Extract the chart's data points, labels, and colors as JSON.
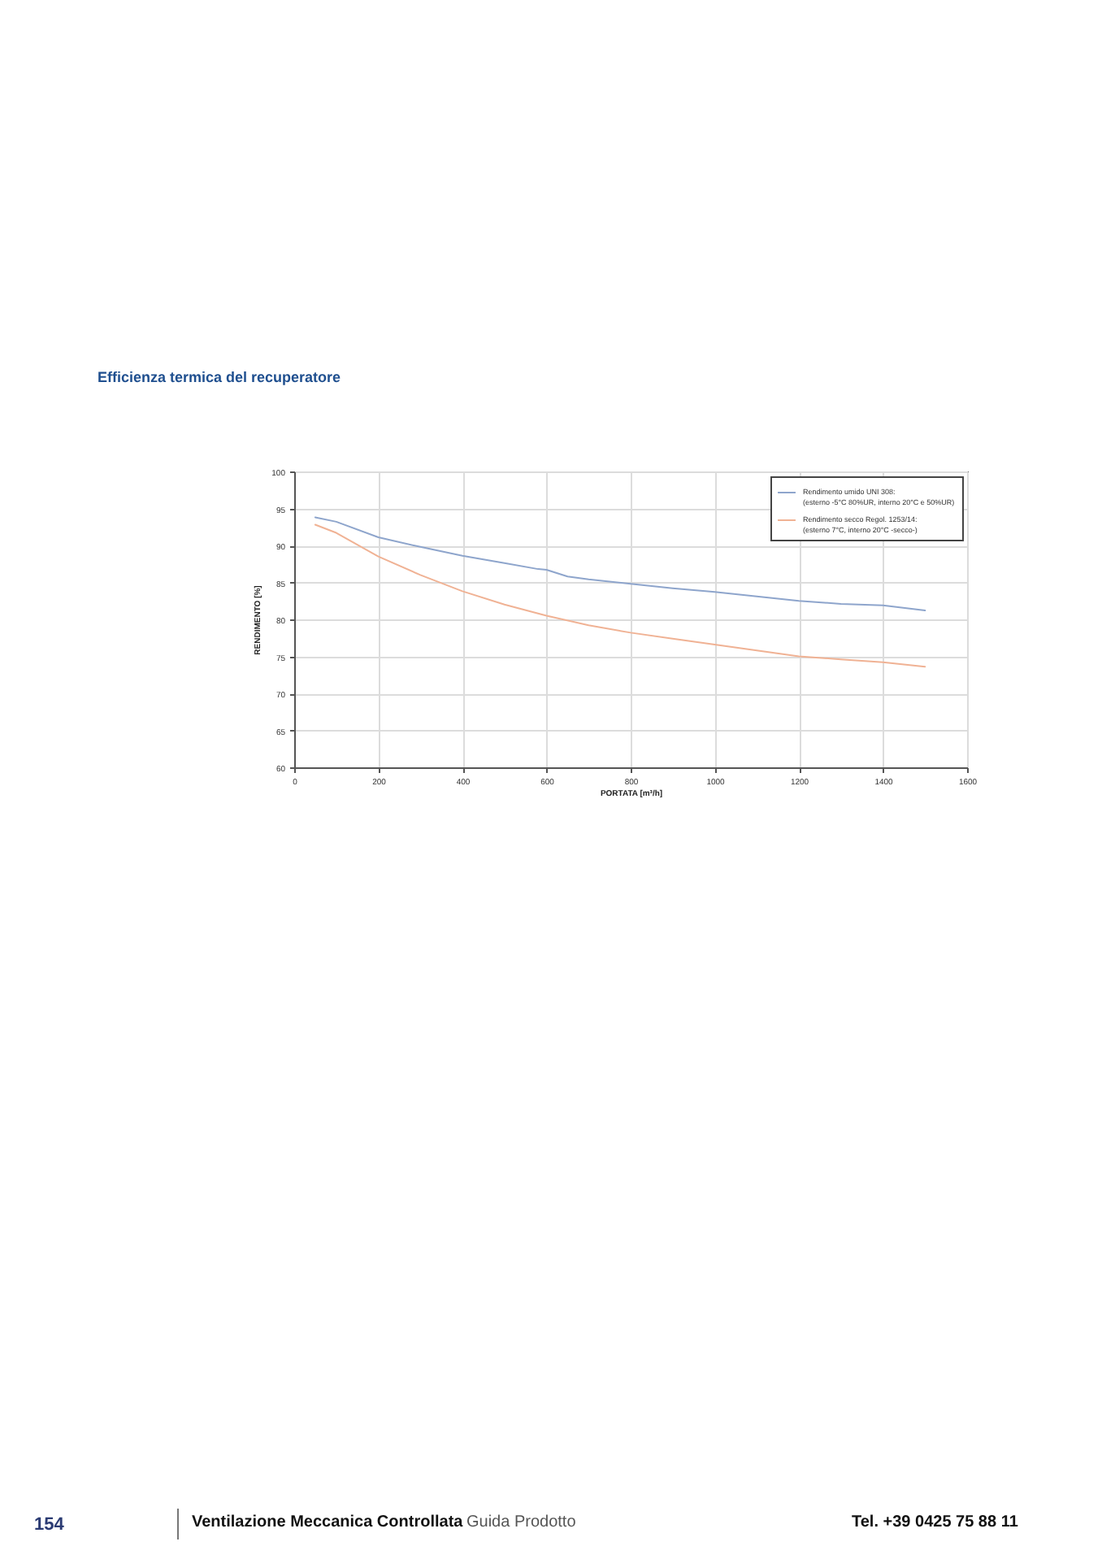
{
  "chart_data": {
    "type": "line",
    "title": "Efficienza termica del recuperatore",
    "xlabel": "PORTATA [m³/h]",
    "ylabel": "RENDIMENTO [%]",
    "xlim": [
      0,
      1600
    ],
    "xticks": [
      0,
      200,
      400,
      600,
      800,
      1000,
      1200,
      1400,
      1600
    ],
    "ylim": [
      60,
      100
    ],
    "yticks": [
      60,
      65,
      70,
      75,
      80,
      85,
      90,
      95,
      100
    ],
    "grid": true,
    "legend": "top right",
    "line_style": "solid",
    "series": [
      {
        "name": "Rendimento umido UNI 308: (esterno -5°C 80%UR, interno 20°C e 50%UR)",
        "color": "#8ea5cc",
        "x": [
          50,
          100,
          200,
          300,
          400,
          500,
          580,
          600,
          650,
          700,
          800,
          900,
          1000,
          1100,
          1200,
          1300,
          1400,
          1500
        ],
        "values": [
          93.8,
          93.2,
          91.1,
          89.8,
          88.6,
          87.6,
          86.8,
          86.7,
          85.8,
          85.4,
          84.8,
          84.2,
          83.7,
          83.1,
          82.5,
          82.1,
          81.9,
          81.2
        ]
      },
      {
        "name": "Rendimento secco Regol. 1253/14: (esterno 7°C, interno 20°C -secco-)",
        "color": "#f0b294",
        "x": [
          50,
          100,
          200,
          300,
          400,
          500,
          600,
          700,
          800,
          900,
          1000,
          1100,
          1200,
          1300,
          1400,
          1500
        ],
        "values": [
          92.8,
          91.7,
          88.5,
          86.0,
          83.8,
          82.0,
          80.5,
          79.2,
          78.2,
          77.4,
          76.6,
          75.8,
          75.0,
          74.6,
          74.2,
          73.6
        ]
      }
    ],
    "annotations": [
      "154",
      "Ventilazione Meccanica Controllata",
      "Guida Prodotto",
      "Tel. +39 0425 75 88 11"
    ]
  }
}
